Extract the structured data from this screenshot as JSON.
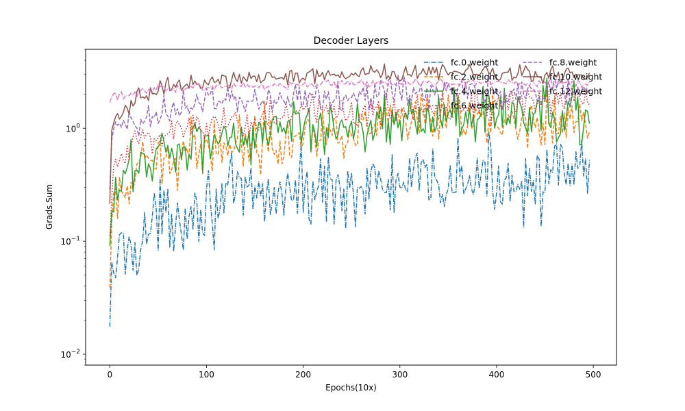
{
  "chart_data": {
    "type": "line",
    "title": "Decoder Layers",
    "xlabel": "Epochs(10x)",
    "ylabel": "Grads.Sum",
    "xlim": [
      -25,
      524
    ],
    "ylim": [
      0.008,
      5.0
    ],
    "yscale": "log",
    "x_ticks": [
      0,
      100,
      200,
      300,
      400,
      500
    ],
    "y_ticks": [
      {
        "value": 0.01,
        "base": "10",
        "exp": "−2"
      },
      {
        "value": 0.1,
        "base": "10",
        "exp": "−1"
      },
      {
        "value": 1,
        "base": "10",
        "exp": "0"
      }
    ],
    "grid": false,
    "legend": {
      "placement": "upper-right",
      "columns": 2,
      "frame": false
    },
    "x_range": [
      0,
      497
    ],
    "series": [
      {
        "name": "fc.0.weight",
        "color": "#1f77b4",
        "dash": "dashdot",
        "anchors": [
          [
            0,
            0.011
          ],
          [
            2,
            0.05
          ],
          [
            5,
            0.06
          ],
          [
            10,
            0.08
          ],
          [
            20,
            0.09
          ],
          [
            30,
            0.1
          ],
          [
            50,
            0.15
          ],
          [
            75,
            0.18
          ],
          [
            100,
            0.22
          ],
          [
            150,
            0.25
          ],
          [
            200,
            0.28
          ],
          [
            250,
            0.3
          ],
          [
            300,
            0.31
          ],
          [
            350,
            0.34
          ],
          [
            400,
            0.36
          ],
          [
            450,
            0.36
          ],
          [
            497,
            0.4
          ]
        ],
        "noise": 0.16
      },
      {
        "name": "fc.2.weight",
        "color": "#ff7f0e",
        "dash": "dashed",
        "anchors": [
          [
            0,
            0.035
          ],
          [
            2,
            0.12
          ],
          [
            5,
            0.2
          ],
          [
            10,
            0.25
          ],
          [
            20,
            0.3
          ],
          [
            30,
            0.4
          ],
          [
            50,
            0.5
          ],
          [
            75,
            0.6
          ],
          [
            100,
            0.7
          ],
          [
            150,
            0.8
          ],
          [
            200,
            0.9
          ],
          [
            250,
            1.0
          ],
          [
            300,
            1.1
          ],
          [
            350,
            1.15
          ],
          [
            400,
            1.2
          ],
          [
            450,
            1.2
          ],
          [
            497,
            1.2
          ]
        ],
        "noise": 0.12
      },
      {
        "name": "fc.4.weight",
        "color": "#2ca02c",
        "dash": "solid",
        "anchors": [
          [
            0,
            0.06
          ],
          [
            2,
            0.15
          ],
          [
            5,
            0.25
          ],
          [
            10,
            0.3
          ],
          [
            20,
            0.4
          ],
          [
            30,
            0.5
          ],
          [
            50,
            0.6
          ],
          [
            75,
            0.7
          ],
          [
            100,
            0.8
          ],
          [
            150,
            0.9
          ],
          [
            200,
            1.0
          ],
          [
            250,
            1.1
          ],
          [
            300,
            1.2
          ],
          [
            350,
            1.25
          ],
          [
            400,
            1.3
          ],
          [
            450,
            1.3
          ],
          [
            497,
            1.3
          ]
        ],
        "noise": 0.12
      },
      {
        "name": "fc.6.weight",
        "color": "#d62728",
        "dash": "dotted",
        "anchors": [
          [
            0,
            0.1
          ],
          [
            2,
            0.3
          ],
          [
            5,
            0.4
          ],
          [
            10,
            0.5
          ],
          [
            20,
            0.6
          ],
          [
            30,
            0.8
          ],
          [
            50,
            0.9
          ],
          [
            75,
            1.0
          ],
          [
            100,
            1.1
          ],
          [
            150,
            1.2
          ],
          [
            200,
            1.35
          ],
          [
            250,
            1.45
          ],
          [
            300,
            1.5
          ],
          [
            350,
            1.6
          ],
          [
            400,
            1.65
          ],
          [
            450,
            1.7
          ],
          [
            497,
            1.7
          ]
        ],
        "noise": 0.08
      },
      {
        "name": "fc.8.weight",
        "color": "#9467bd",
        "dash": "dashed",
        "anchors": [
          [
            0,
            0.3
          ],
          [
            2,
            0.7
          ],
          [
            5,
            0.9
          ],
          [
            10,
            1.0
          ],
          [
            20,
            1.1
          ],
          [
            30,
            1.2
          ],
          [
            50,
            1.4
          ],
          [
            75,
            1.6
          ],
          [
            100,
            1.7
          ],
          [
            150,
            1.8
          ],
          [
            200,
            1.9
          ],
          [
            250,
            2.0
          ],
          [
            300,
            2.1
          ],
          [
            350,
            2.1
          ],
          [
            400,
            2.1
          ],
          [
            450,
            2.15
          ],
          [
            497,
            2.2
          ]
        ],
        "noise": 0.07
      },
      {
        "name": "fc.10.weight",
        "color": "#8c564b",
        "dash": "solid",
        "anchors": [
          [
            0,
            0.2
          ],
          [
            2,
            0.9
          ],
          [
            5,
            1.1
          ],
          [
            10,
            1.3
          ],
          [
            20,
            1.6
          ],
          [
            30,
            1.9
          ],
          [
            50,
            2.2
          ],
          [
            75,
            2.5
          ],
          [
            100,
            2.6
          ],
          [
            150,
            2.8
          ],
          [
            200,
            2.9
          ],
          [
            250,
            3.0
          ],
          [
            300,
            3.1
          ],
          [
            350,
            3.1
          ],
          [
            400,
            3.1
          ],
          [
            450,
            3.0
          ],
          [
            497,
            3.0
          ]
        ],
        "noise": 0.035
      },
      {
        "name": "fc.12.weight",
        "color": "#e377c2",
        "dash": "dashdot",
        "anchors": [
          [
            0,
            1.7
          ],
          [
            2,
            2.0
          ],
          [
            5,
            1.95
          ],
          [
            10,
            1.9
          ],
          [
            20,
            1.95
          ],
          [
            30,
            2.05
          ],
          [
            50,
            2.2
          ],
          [
            75,
            2.3
          ],
          [
            100,
            2.35
          ],
          [
            150,
            2.4
          ],
          [
            200,
            2.45
          ],
          [
            250,
            2.5
          ],
          [
            300,
            2.5
          ],
          [
            350,
            2.5
          ],
          [
            400,
            2.5
          ],
          [
            450,
            2.5
          ],
          [
            497,
            2.5
          ]
        ],
        "noise": 0.018
      }
    ]
  }
}
